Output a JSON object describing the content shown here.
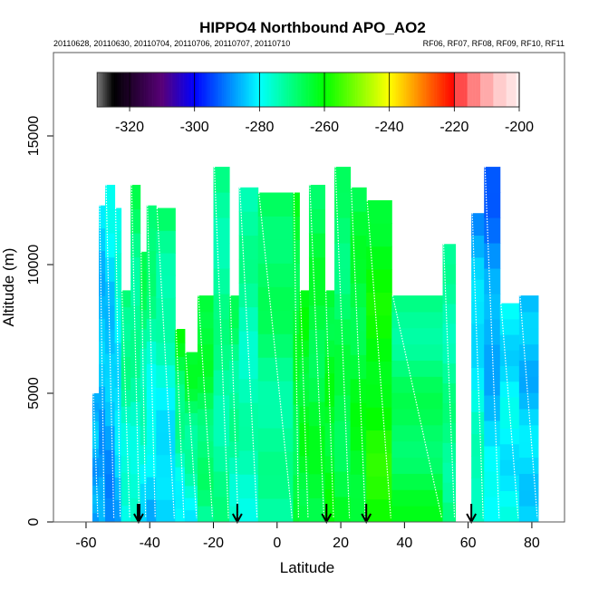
{
  "chart_data": {
    "type": "heatmap",
    "title": "HIPPO4 Northbound APO_AO2",
    "subtitle_left": "20110628, 20110630, 20110704, 20110706, 20110707, 20110710",
    "subtitle_right": "RF06, RF07, RF08, RF09, RF10, RF11",
    "xlabel": "Latitude",
    "ylabel": "Altitude (m)",
    "xlim": [
      -70.7,
      90.2
    ],
    "ylim": [
      0,
      18200
    ],
    "xticks": [
      "-60",
      "-40",
      "-20",
      "0",
      "20",
      "40",
      "60",
      "80"
    ],
    "xtick_values": [
      -60,
      -40,
      -20,
      0,
      20,
      40,
      60,
      80
    ],
    "yticks": [
      "0",
      "5000",
      "10000",
      "15000"
    ],
    "ytick_values": [
      0,
      5000,
      10000,
      15000
    ],
    "colorbar": {
      "range": [
        -330,
        -200
      ],
      "ticks": [
        "-320",
        "-300",
        "-280",
        "-260",
        "-240",
        "-220",
        "-200"
      ],
      "tick_values": [
        -320,
        -300,
        -280,
        -260,
        -240,
        -220,
        -200
      ],
      "stops": [
        {
          "v": -330,
          "c": "#7a7a7a"
        },
        {
          "v": -325,
          "c": "#000000"
        },
        {
          "v": -310,
          "c": "#580078"
        },
        {
          "v": -300,
          "c": "#0000ff"
        },
        {
          "v": -280,
          "c": "#00ffff"
        },
        {
          "v": -260,
          "c": "#00ff00"
        },
        {
          "v": -240,
          "c": "#ffff00"
        },
        {
          "v": -220,
          "c": "#ff0000"
        }
      ],
      "upper_bands": [
        {
          "from": -220,
          "to": -216,
          "c": "#ff4a4a"
        },
        {
          "from": -216,
          "to": -212,
          "c": "#ff8080"
        },
        {
          "from": -212,
          "to": -208,
          "c": "#ffaaaa"
        },
        {
          "from": -208,
          "to": -204,
          "c": "#ffcccc"
        },
        {
          "from": -204,
          "to": -201,
          "c": "#ffe0e0"
        },
        {
          "from": -201,
          "to": -200,
          "c": "#fff2f2"
        }
      ]
    },
    "columns": [
      {
        "lat": [
          -58,
          -56
        ],
        "top": 5000,
        "v_top": -284,
        "v_bottom": -288
      },
      {
        "lat": [
          -56,
          -54
        ],
        "top": 12300,
        "v_top": -283,
        "v_bottom": -288
      },
      {
        "lat": [
          -54,
          -51
        ],
        "top": 13100,
        "v_top": -280,
        "v_bottom": -289
      },
      {
        "lat": [
          -51,
          -49
        ],
        "top": 12200,
        "v_top": -276,
        "v_bottom": -286
      },
      {
        "lat": [
          -49,
          -46
        ],
        "top": 9000,
        "v_top": -268,
        "v_bottom": -280
      },
      {
        "lat": [
          -46,
          -43
        ],
        "top": 13100,
        "v_top": -268,
        "v_bottom": -278
      },
      {
        "lat": [
          -43,
          -41
        ],
        "top": 10500,
        "v_top": -266,
        "v_bottom": -282
      },
      {
        "lat": [
          -41,
          -38
        ],
        "top": 12300,
        "v_top": -266,
        "v_bottom": -286
      },
      {
        "lat": [
          -38,
          -32
        ],
        "top": 12200,
        "v_top": -268,
        "v_bottom": -286
      },
      {
        "lat": [
          -32,
          -29
        ],
        "top": 7500,
        "v_top": -262,
        "v_bottom": -282
      },
      {
        "lat": [
          -29,
          -25
        ],
        "top": 6600,
        "v_top": -262,
        "v_bottom": -280
      },
      {
        "lat": [
          -25,
          -20
        ],
        "top": 8800,
        "v_top": -262,
        "v_bottom": -272
      },
      {
        "lat": [
          -20,
          -15
        ],
        "top": 13800,
        "v_top": -272,
        "v_bottom": -272
      },
      {
        "lat": [
          -15,
          -12
        ],
        "top": 8800,
        "v_top": -268,
        "v_bottom": -276
      },
      {
        "lat": [
          -12,
          -6
        ],
        "top": 13000,
        "v_top": -272,
        "v_bottom": -276
      },
      {
        "lat": [
          -6,
          5
        ],
        "top": 12800,
        "v_top": -266,
        "v_bottom": -274
      },
      {
        "lat": [
          5,
          7
        ],
        "top": 12800,
        "v_top": -264,
        "v_bottom": -266
      },
      {
        "lat": [
          7,
          10
        ],
        "top": 9000,
        "v_top": -262,
        "v_bottom": -264
      },
      {
        "lat": [
          10,
          15
        ],
        "top": 13100,
        "v_top": -266,
        "v_bottom": -264
      },
      {
        "lat": [
          15,
          18
        ],
        "top": 9000,
        "v_top": -264,
        "v_bottom": -262
      },
      {
        "lat": [
          18,
          23
        ],
        "top": 13800,
        "v_top": -270,
        "v_bottom": -264
      },
      {
        "lat": [
          23,
          28
        ],
        "top": 13000,
        "v_top": -266,
        "v_bottom": -262
      },
      {
        "lat": [
          28,
          36
        ],
        "top": 12500,
        "v_top": -262,
        "v_bottom": -258
      },
      {
        "lat": [
          36,
          52
        ],
        "top": 8800,
        "v_top": -272,
        "v_bottom": -264
      },
      {
        "lat": [
          52,
          56
        ],
        "top": 10800,
        "v_top": -274,
        "v_bottom": -270
      },
      {
        "lat": [
          61,
          65
        ],
        "top": 12000,
        "v_top": -288,
        "v_bottom": -272
      },
      {
        "lat": [
          65,
          70
        ],
        "top": 13800,
        "v_top": -292,
        "v_bottom": -280
      },
      {
        "lat": [
          70,
          76
        ],
        "top": 8500,
        "v_top": -282,
        "v_bottom": -280
      },
      {
        "lat": [
          76,
          82
        ],
        "top": 8800,
        "v_top": -286,
        "v_bottom": -282
      }
    ],
    "arrows_lat": [
      -43.5,
      -12.5,
      15.5,
      28,
      61
    ]
  }
}
